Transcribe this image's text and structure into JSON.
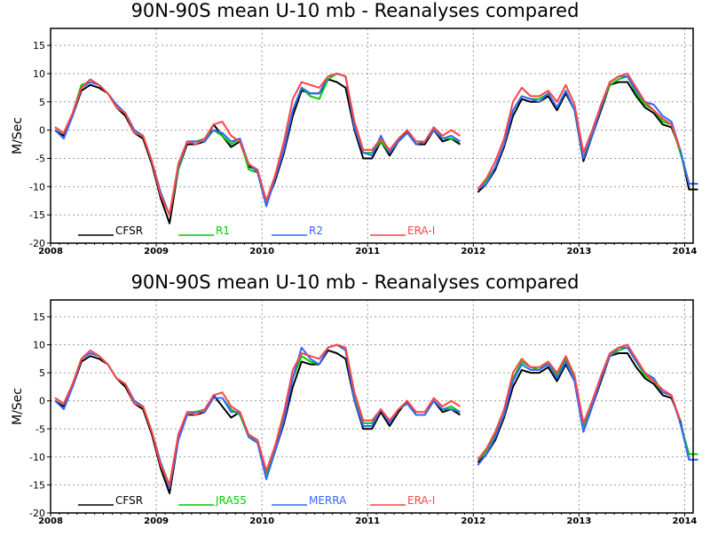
{
  "chart_data": [
    {
      "type": "line",
      "title": "90N-90S mean U-10 mb - Reanalyses compared",
      "xlabel": "",
      "ylabel": "M/Sec",
      "xlim": [
        2008,
        2014.08
      ],
      "ylim": [
        -20,
        18
      ],
      "grid": true,
      "legend_position": "bottom-inside",
      "xticks": [
        "2008",
        "2009",
        "2010",
        "2011",
        "2012",
        "2013",
        "2014"
      ],
      "yticks": [
        "-20",
        "-15",
        "-10",
        "-5",
        "0",
        "5",
        "10",
        "15"
      ],
      "series": [
        {
          "name": "CFSR",
          "color": "#000000",
          "values": [
            0,
            -1,
            2.5,
            7,
            8,
            7.5,
            6.5,
            4,
            2.5,
            -0.5,
            -1.5,
            -6,
            -12,
            -16.5,
            -7,
            -2.5,
            -2.5,
            -2,
            1,
            -1,
            -3,
            -2,
            -6.5,
            -7,
            -13,
            -9,
            -4,
            2.5,
            7,
            6.5,
            6.5,
            9,
            8.5,
            7.5,
            0,
            -5,
            -5,
            -2,
            -4.5,
            -2,
            0,
            -2.5,
            -2.5,
            0,
            -2,
            -1.5,
            -2.5,
            null,
            -11,
            -9.5,
            -7,
            -3,
            2.5,
            5.5,
            5,
            5,
            6,
            3.5,
            6.5,
            3.5,
            -5.5,
            -1,
            3.5,
            8,
            8.5,
            8.5,
            6,
            4,
            3,
            1,
            0.5,
            -3.5,
            -10.5,
            -10.5
          ]
        },
        {
          "name": "R1",
          "color": "#00cc00",
          "values": [
            0.5,
            -0.5,
            3,
            8,
            8.5,
            8,
            6.5,
            4,
            3,
            0,
            -1,
            -5.5,
            -11,
            -15,
            -7,
            -2,
            -2,
            -1.5,
            0,
            -1,
            -2.5,
            -1.5,
            -7,
            -7.5,
            -13,
            -8,
            -3,
            3.5,
            7.5,
            6,
            5.5,
            9,
            10,
            9.5,
            0.5,
            -4,
            -4,
            -2,
            -4,
            -2,
            -0.5,
            -2.5,
            -2,
            0.5,
            -1.5,
            -1.5,
            -2,
            null,
            -10.5,
            -9,
            -6.5,
            -2.5,
            3.5,
            6,
            5.5,
            5.5,
            6.5,
            4,
            7,
            3.5,
            -5,
            -0.5,
            4,
            8,
            9,
            9.5,
            6.5,
            4.5,
            3.5,
            1.5,
            1,
            -4,
            -9.5,
            -9.5
          ]
        },
        {
          "name": "R2",
          "color": "#3366ff",
          "values": [
            0,
            -1.5,
            2.5,
            7.5,
            8.5,
            8,
            6.5,
            4.5,
            3,
            0,
            -1,
            -5.5,
            -11,
            -15,
            -6.5,
            -2,
            -2,
            -2,
            0,
            -0.5,
            -2,
            -1.5,
            -6,
            -7.5,
            -13.5,
            -8.5,
            -3.5,
            3.5,
            7.5,
            6.5,
            6.5,
            9.5,
            10,
            9.5,
            0.5,
            -4,
            -4.5,
            -1,
            -4,
            -2,
            -0.5,
            -2.5,
            -2,
            0,
            -1.5,
            -1,
            -2,
            null,
            -10.5,
            -9.5,
            -6.5,
            -2.5,
            3.5,
            6,
            5.5,
            5,
            6.5,
            4,
            7,
            3.5,
            -5,
            -1,
            4,
            8.5,
            9.5,
            9.5,
            7,
            5,
            4.5,
            2.5,
            1.5,
            -3.5,
            -9.5,
            -9.5
          ]
        },
        {
          "name": "ERA-I",
          "color": "#ff4444",
          "values": [
            0.5,
            -0.5,
            3,
            7.5,
            9,
            8,
            6.5,
            4,
            3,
            -0.5,
            -1,
            -5.5,
            -11.5,
            -15,
            -6,
            -2,
            -2.5,
            -1.5,
            1,
            1.5,
            -1,
            -2,
            -6,
            -7,
            -12.5,
            -8,
            -2,
            5.5,
            8.5,
            8,
            7.5,
            9.5,
            10,
            9.5,
            1.5,
            -3.5,
            -3.5,
            -1.5,
            -3.5,
            -1.5,
            0,
            -2,
            -2,
            0.5,
            -1,
            0,
            -1,
            null,
            -10.5,
            -8.5,
            -5.5,
            -1.5,
            5,
            7.5,
            6,
            6,
            7,
            5,
            8,
            4.5,
            -4,
            0,
            4.5,
            8.5,
            9.5,
            10,
            7.5,
            5,
            3.5,
            2,
            1,
            -3.5,
            null,
            null
          ]
        }
      ]
    },
    {
      "type": "line",
      "title": "90N-90S mean U-10 mb - Reanalyses compared",
      "xlabel": "",
      "ylabel": "M/Sec",
      "xlim": [
        2008,
        2014.08
      ],
      "ylim": [
        -20,
        18
      ],
      "grid": true,
      "legend_position": "bottom-inside",
      "xticks": [
        "2008",
        "2009",
        "2010",
        "2011",
        "2012",
        "2013",
        "2014"
      ],
      "yticks": [
        "-20",
        "-15",
        "-10",
        "-5",
        "0",
        "5",
        "10",
        "15"
      ],
      "series": [
        {
          "name": "CFSR",
          "color": "#000000",
          "values": [
            0,
            -1,
            2.5,
            7,
            8,
            7.5,
            6.5,
            4,
            2.5,
            -0.5,
            -1.5,
            -6,
            -12,
            -16.5,
            -7,
            -2.5,
            -2.5,
            -2,
            1,
            -1,
            -3,
            -2,
            -6.5,
            -7,
            -13,
            -9,
            -4,
            2.5,
            7,
            6.5,
            6.5,
            9,
            8.5,
            7.5,
            0,
            -5,
            -5,
            -2,
            -4.5,
            -2,
            0,
            -2.5,
            -2.5,
            0,
            -2,
            -1.5,
            -2.5,
            null,
            -11,
            -9.5,
            -7,
            -3,
            2.5,
            5.5,
            5,
            5,
            6,
            3.5,
            6.5,
            3.5,
            -5.5,
            -1,
            3.5,
            8,
            8.5,
            8.5,
            6,
            4,
            3,
            1,
            0.5,
            -3.5,
            -10.5,
            -10.5
          ]
        },
        {
          "name": "JRA55",
          "color": "#00cc00",
          "values": [
            0.5,
            -0.5,
            3,
            7.5,
            8.5,
            8,
            6.5,
            4,
            3,
            0,
            -1,
            -5.5,
            -11,
            -15,
            -7,
            -2,
            -2,
            -1.5,
            0.5,
            0.5,
            -1.5,
            -2.5,
            -6.5,
            -7,
            -13,
            -8.5,
            -3,
            4,
            8,
            7,
            6.5,
            9.5,
            10,
            9.5,
            0.5,
            -4,
            -4,
            -1.5,
            -4,
            -1.5,
            -0.5,
            -2.5,
            -2.5,
            0,
            -1.5,
            -1,
            -2,
            null,
            -10.5,
            -9,
            -6,
            -2.5,
            4,
            7,
            6,
            5.5,
            7,
            4.5,
            7.5,
            4,
            -4.5,
            -0.5,
            4,
            8,
            9,
            9.5,
            7,
            4.5,
            3.5,
            1.5,
            1,
            -4,
            -9.5,
            -9.5
          ]
        },
        {
          "name": "MERRA",
          "color": "#3366ff",
          "values": [
            0,
            -1.5,
            2.5,
            7.5,
            8.5,
            8,
            6.5,
            4,
            3,
            0,
            -1,
            -5.5,
            -11,
            -15.5,
            -7,
            -2.5,
            -2,
            -2,
            0.5,
            0.5,
            -2,
            -2,
            -6.5,
            -7.5,
            -14,
            -9,
            -3.5,
            4,
            9.5,
            7.5,
            6.5,
            9.5,
            10,
            9,
            0,
            -4.5,
            -4.5,
            -1.5,
            -4,
            -1.5,
            -0.5,
            -2.5,
            -2.5,
            0,
            -1.5,
            -1.5,
            -2,
            null,
            -11.5,
            -9.5,
            -6.5,
            -2.5,
            3.5,
            6.5,
            5.5,
            5.5,
            6.5,
            4,
            7,
            3.5,
            -5.5,
            -1,
            4,
            8,
            9.5,
            9.5,
            7,
            5,
            4,
            1.5,
            1,
            -4,
            -10.5,
            -10.5
          ]
        },
        {
          "name": "ERA-I",
          "color": "#ff4444",
          "values": [
            0.5,
            -0.5,
            3,
            7.5,
            9,
            8,
            6.5,
            4,
            3,
            -0.5,
            -1,
            -5.5,
            -11.5,
            -15,
            -6,
            -2,
            -2.5,
            -1.5,
            1,
            1.5,
            -1,
            -2,
            -6,
            -7,
            -12.5,
            -8,
            -2,
            5.5,
            8.5,
            8,
            7.5,
            9.5,
            10,
            9.5,
            1.5,
            -3.5,
            -3.5,
            -1.5,
            -3.5,
            -1.5,
            0,
            -2,
            -2,
            0.5,
            -1,
            0,
            -1,
            null,
            -10.5,
            -8.5,
            -5.5,
            -1.5,
            5,
            7.5,
            6,
            6,
            7,
            5,
            8,
            4.5,
            -4,
            0,
            4.5,
            8.5,
            9.5,
            10,
            7.5,
            5,
            3.5,
            2,
            1,
            -3.5,
            null,
            null
          ]
        }
      ]
    }
  ]
}
